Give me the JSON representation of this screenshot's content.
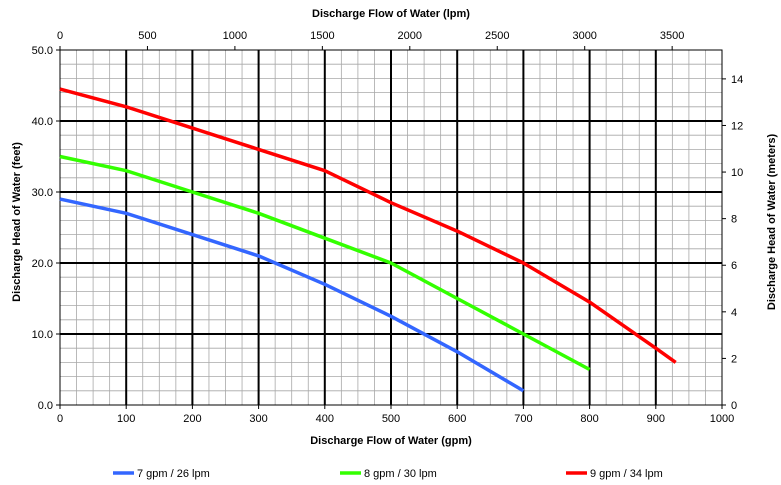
{
  "chart_data": {
    "type": "line",
    "title": "",
    "xlabel": "Discharge Flow of Water (gpm)",
    "ylabel": "Discharge Head of Water (feet)",
    "x2label": "Discharge Flow of Water (lpm)",
    "y2label": "Discharge Head of Water (meters)",
    "xlim": [
      0,
      1000
    ],
    "ylim": [
      0,
      50
    ],
    "x2lim": [
      0,
      3785
    ],
    "y2lim": [
      0,
      15.24
    ],
    "x_ticks": [
      "0",
      "100",
      "200",
      "300",
      "400",
      "500",
      "600",
      "700",
      "800",
      "900",
      "1000"
    ],
    "y_ticks": [
      "0.0",
      "10.0",
      "20.0",
      "30.0",
      "40.0",
      "50.0"
    ],
    "x2_ticks": [
      "0",
      "500",
      "1000",
      "1500",
      "2000",
      "2500",
      "3000",
      "3500"
    ],
    "y2_ticks": [
      "0",
      "2",
      "4",
      "6",
      "8",
      "10",
      "12",
      "14"
    ],
    "grid": true,
    "legend_position": "bottom",
    "series": [
      {
        "name": "7 gpm / 26 lpm",
        "color": "#3366ff",
        "x": [
          0,
          100,
          200,
          300,
          400,
          500,
          600,
          700
        ],
        "y": [
          29,
          27,
          24,
          21,
          17,
          12.5,
          7.5,
          2
        ]
      },
      {
        "name": "8 gpm / 30 lpm",
        "color": "#33ff00",
        "x": [
          0,
          100,
          200,
          300,
          400,
          500,
          600,
          700,
          800
        ],
        "y": [
          35,
          33,
          30,
          27,
          23.5,
          20,
          15,
          10,
          5
        ]
      },
      {
        "name": "9 gpm / 34 lpm",
        "color": "#ff0000",
        "x": [
          0,
          100,
          200,
          300,
          400,
          500,
          600,
          700,
          800,
          900,
          930
        ],
        "y": [
          44.5,
          42,
          39,
          36,
          33,
          28.5,
          24.5,
          20,
          14.5,
          8,
          6
        ]
      }
    ]
  }
}
